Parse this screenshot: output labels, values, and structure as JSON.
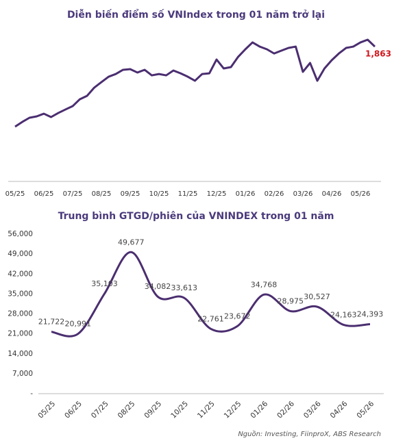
{
  "chart_data": [
    {
      "type": "line",
      "title": "Diễn biến điểm số VNIndex trong 01 năm trở lại",
      "categories": [
        "05/25",
        null,
        null,
        null,
        "06/25",
        null,
        null,
        null,
        "07/25",
        null,
        null,
        null,
        "08/25",
        null,
        null,
        null,
        "09/25",
        null,
        null,
        null,
        "10/25",
        null,
        null,
        null,
        "11/25",
        null,
        null,
        null,
        "12/25",
        null,
        null,
        null,
        "01/26",
        null,
        null,
        null,
        "02/26",
        null,
        null,
        null,
        "03/26",
        null,
        null,
        null,
        "04/26",
        null,
        null,
        null,
        "05/26",
        null,
        null
      ],
      "values": [
        1270,
        1305,
        1336,
        1346,
        1366,
        1341,
        1371,
        1397,
        1422,
        1473,
        1498,
        1559,
        1600,
        1640,
        1660,
        1691,
        1696,
        1671,
        1691,
        1650,
        1660,
        1650,
        1686,
        1665,
        1640,
        1610,
        1660,
        1665,
        1767,
        1701,
        1711,
        1787,
        1843,
        1894,
        1863,
        1843,
        1812,
        1833,
        1853,
        1863,
        1676,
        1742,
        1610,
        1701,
        1762,
        1812,
        1853,
        1863,
        1894,
        1914,
        1863
      ],
      "end_label": "1,863",
      "color": "#4b2e70"
    },
    {
      "type": "smooth-line",
      "title": "Trung bình GTGD/phiên của VNINDEX trong 01 năm",
      "categories": [
        "05/25",
        "06/25",
        "07/25",
        "08/25",
        "09/25",
        "10/25",
        "11/25",
        "12/25",
        "01/26",
        "02/26",
        "03/26",
        "04/26",
        "05/26"
      ],
      "values": [
        21722,
        20991,
        35103,
        49677,
        34082,
        33613,
        22761,
        23672,
        34768,
        28975,
        30527,
        24163,
        24393
      ],
      "value_labels": [
        "21,722",
        "20,991",
        "35,103",
        "49,677",
        "34,082",
        "33,613",
        "22,761",
        "23,672",
        "34,768",
        "28,975",
        "30,527",
        "24,163",
        "24,393"
      ],
      "color": "#4b2e70",
      "ylim": [
        0,
        56000
      ],
      "yticks": [
        {
          "value": 0,
          "label": "-"
        },
        {
          "value": 7000,
          "label": "7,000"
        },
        {
          "value": 14000,
          "label": "14,000"
        },
        {
          "value": 21000,
          "label": "21,000"
        },
        {
          "value": 28000,
          "label": "28,000"
        },
        {
          "value": 35000,
          "label": "35,000"
        },
        {
          "value": 42000,
          "label": "42,000"
        },
        {
          "value": 49000,
          "label": "49,000"
        },
        {
          "value": 56000,
          "label": "56,000"
        }
      ],
      "source": "Nguồn: Investing, FiinproX, ABS Research"
    }
  ]
}
